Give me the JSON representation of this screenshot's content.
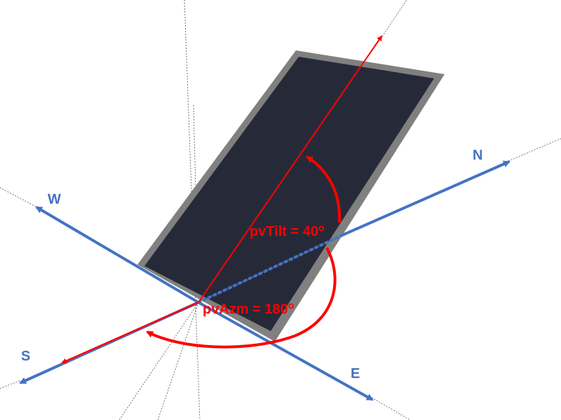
{
  "compass": {
    "north": "N",
    "south": "S",
    "east": "E",
    "west": "W"
  },
  "annotations": {
    "tilt_label": "pvTilt = 40",
    "tilt_degree": "o",
    "azimuth_label": "pvAzm = 180",
    "azimuth_degree": "o"
  },
  "colors": {
    "axis_blue": "#4472c4",
    "annotation_red": "#ff0000",
    "panel_face": "#262a38",
    "panel_frame": "#808080",
    "guide_line": "#555555"
  }
}
